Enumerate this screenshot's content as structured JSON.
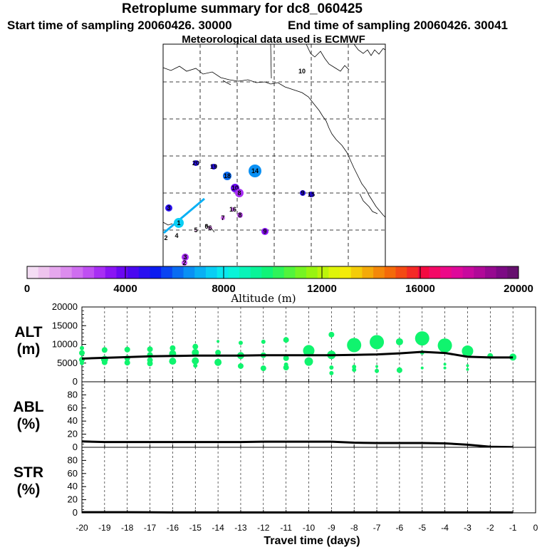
{
  "header": {
    "title": "Retroplume summary for dc8_060425",
    "start_label": "Start time of sampling 20060426. 30000",
    "end_label": "End time of sampling 20060426. 30041",
    "met_label": "Meteorological data used is ECMWF"
  },
  "map": {
    "day_labels": [
      "10",
      "20",
      "19",
      "18",
      "14",
      "10",
      "9",
      "15",
      "16",
      "8",
      "8",
      "9",
      "3",
      "7",
      "6",
      "5",
      "1",
      "2",
      "4",
      "3",
      "2",
      "6"
    ]
  },
  "colorbar": {
    "ticks": [
      "0",
      "4000",
      "8000",
      "12000",
      "16000",
      "20000"
    ],
    "label": "Altitude (m)",
    "colors": [
      "#f4ddf4",
      "#eec4ee",
      "#e6a8ee",
      "#dc8cee",
      "#cf6ef0",
      "#bf4ff2",
      "#a82ef4",
      "#8a14f4",
      "#6a08f2",
      "#4a08f0",
      "#2a10f0",
      "#0b1cf0",
      "#0a44f2",
      "#0a6cf2",
      "#0a90f4",
      "#0ab0f4",
      "#0acef4",
      "#0ae8ef",
      "#0af4d8",
      "#0af4b8",
      "#0af498",
      "#10f478",
      "#2ef45a",
      "#52f43c",
      "#76f422",
      "#98f410",
      "#bcf40a",
      "#def40a",
      "#f4ec0a",
      "#f4cc0a",
      "#f4aa0a",
      "#f4880a",
      "#f46a0a",
      "#f44a14",
      "#f42a26",
      "#f40a40",
      "#f40a66",
      "#ec0a88",
      "#de0a9a",
      "#c80a9e",
      "#b00a98",
      "#960a90",
      "#7c0a84",
      "#66106e"
    ]
  },
  "chart_data": [
    {
      "type": "scatter",
      "panel": "ALT",
      "ylabel": "ALT\n(m)",
      "ylabel_top": "ALT",
      "ylabel_bottom": "(m)",
      "ylim": [
        0,
        20000
      ],
      "xlim": [
        -20,
        0
      ],
      "yticks": [
        "0",
        "5000",
        "10000",
        "15000",
        "20000"
      ],
      "line": {
        "x": [
          -20,
          -19,
          -18,
          -17,
          -16,
          -15,
          -14,
          -13,
          -12,
          -11,
          -10,
          -9,
          -8,
          -7,
          -6,
          -5,
          -4,
          -3,
          -2,
          -1
        ],
        "y": [
          6200,
          6400,
          6600,
          6800,
          6900,
          7000,
          7000,
          7000,
          7100,
          7100,
          7100,
          7100,
          7200,
          7300,
          7600,
          8000,
          7700,
          6700,
          6500,
          6500
        ]
      },
      "bubbles": [
        {
          "x": -20,
          "y": 9000,
          "s": 3
        },
        {
          "x": -20,
          "y": 7700,
          "s": 4
        },
        {
          "x": -20,
          "y": 5900,
          "s": 4
        },
        {
          "x": -20,
          "y": 5000,
          "s": 3
        },
        {
          "x": -19,
          "y": 8500,
          "s": 4
        },
        {
          "x": -19,
          "y": 6000,
          "s": 5
        },
        {
          "x": -19,
          "y": 5200,
          "s": 4
        },
        {
          "x": -18,
          "y": 8600,
          "s": 4
        },
        {
          "x": -18,
          "y": 6300,
          "s": 4
        },
        {
          "x": -18,
          "y": 5100,
          "s": 4
        },
        {
          "x": -17,
          "y": 8700,
          "s": 4
        },
        {
          "x": -17,
          "y": 7200,
          "s": 4
        },
        {
          "x": -17,
          "y": 5800,
          "s": 4
        },
        {
          "x": -17,
          "y": 4900,
          "s": 4
        },
        {
          "x": -16,
          "y": 9000,
          "s": 4
        },
        {
          "x": -16,
          "y": 7500,
          "s": 5
        },
        {
          "x": -16,
          "y": 5500,
          "s": 5
        },
        {
          "x": -15,
          "y": 9400,
          "s": 4
        },
        {
          "x": -15,
          "y": 7800,
          "s": 5
        },
        {
          "x": -15,
          "y": 5600,
          "s": 5
        },
        {
          "x": -15,
          "y": 4300,
          "s": 3
        },
        {
          "x": -14,
          "y": 10800,
          "s": 2
        },
        {
          "x": -14,
          "y": 7800,
          "s": 4
        },
        {
          "x": -14,
          "y": 5200,
          "s": 5
        },
        {
          "x": -13,
          "y": 10400,
          "s": 3
        },
        {
          "x": -13,
          "y": 7000,
          "s": 5
        },
        {
          "x": -13,
          "y": 4200,
          "s": 4
        },
        {
          "x": -12,
          "y": 10700,
          "s": 3
        },
        {
          "x": -12,
          "y": 7100,
          "s": 4
        },
        {
          "x": -12,
          "y": 3600,
          "s": 4
        },
        {
          "x": -11,
          "y": 11200,
          "s": 4
        },
        {
          "x": -11,
          "y": 6300,
          "s": 4
        },
        {
          "x": -11,
          "y": 4600,
          "s": 3
        },
        {
          "x": -11,
          "y": 3800,
          "s": 4
        },
        {
          "x": -10,
          "y": 8300,
          "s": 8
        },
        {
          "x": -10,
          "y": 5400,
          "s": 6
        },
        {
          "x": -9,
          "y": 12600,
          "s": 4
        },
        {
          "x": -9,
          "y": 7200,
          "s": 6
        },
        {
          "x": -9,
          "y": 3800,
          "s": 3
        },
        {
          "x": -9,
          "y": 2300,
          "s": 3
        },
        {
          "x": -8,
          "y": 9800,
          "s": 10
        },
        {
          "x": -8,
          "y": 4000,
          "s": 3
        },
        {
          "x": -8,
          "y": 3200,
          "s": 3
        },
        {
          "x": -7,
          "y": 10600,
          "s": 10
        },
        {
          "x": -7,
          "y": 4100,
          "s": 2
        },
        {
          "x": -7,
          "y": 2900,
          "s": 3
        },
        {
          "x": -6,
          "y": 10700,
          "s": 5
        },
        {
          "x": -6,
          "y": 3100,
          "s": 4
        },
        {
          "x": -5,
          "y": 11600,
          "s": 10
        },
        {
          "x": -5,
          "y": 7800,
          "s": 3
        },
        {
          "x": -5,
          "y": 3700,
          "s": 2
        },
        {
          "x": -4,
          "y": 9700,
          "s": 10
        },
        {
          "x": -4,
          "y": 4700,
          "s": 2
        },
        {
          "x": -4,
          "y": 3700,
          "s": 2
        },
        {
          "x": -3,
          "y": 8200,
          "s": 8
        },
        {
          "x": -3,
          "y": 4300,
          "s": 2
        },
        {
          "x": -3,
          "y": 3300,
          "s": 2
        },
        {
          "x": -2,
          "y": 6900,
          "s": 4
        },
        {
          "x": -1,
          "y": 6600,
          "s": 5
        }
      ]
    },
    {
      "type": "line",
      "panel": "ABL",
      "ylabel_top": "ABL",
      "ylabel_bottom": "(%)",
      "ylim": [
        0,
        100
      ],
      "xlim": [
        -20,
        0
      ],
      "yticks": [
        "0",
        "20",
        "40",
        "60",
        "80"
      ],
      "x": [
        -20,
        -19,
        -18,
        -17,
        -16,
        -15,
        -14,
        -13,
        -12,
        -11,
        -10,
        -9,
        -8,
        -7,
        -6,
        -5,
        -4,
        -3,
        -2,
        -1
      ],
      "y": [
        9,
        8,
        8,
        8,
        8,
        8,
        8,
        8,
        8.5,
        8.5,
        8.5,
        8.5,
        7,
        6.5,
        6.5,
        6.5,
        6,
        4,
        0.8,
        0.3
      ]
    },
    {
      "type": "line",
      "panel": "STR",
      "ylabel_top": "STR",
      "ylabel_bottom": "(%)",
      "ylim": [
        0,
        100
      ],
      "xlim": [
        -20,
        0
      ],
      "yticks": [
        "0",
        "20",
        "40",
        "60",
        "80"
      ],
      "xticks": [
        "-20",
        "-19",
        "-18",
        "-17",
        "-16",
        "-15",
        "-14",
        "-13",
        "-12",
        "-11",
        "-10",
        "-9",
        "-8",
        "-7",
        "-6",
        "-5",
        "-4",
        "-3",
        "-2",
        "-1",
        "0"
      ],
      "xlabel": "Travel time (days)",
      "x": [
        -20,
        -19,
        -18,
        -17,
        -16,
        -15,
        -14,
        -13,
        -12,
        -11,
        -10,
        -9,
        -8,
        -7,
        -6,
        -5,
        -4,
        -3,
        -2,
        -1
      ],
      "y": [
        1,
        1,
        1,
        0.8,
        0.6,
        0.5,
        0.5,
        0.5,
        0.5,
        0.5,
        0.5,
        0.5,
        0.5,
        0.5,
        0.5,
        0.5,
        0.5,
        0.5,
        0.5,
        0.5
      ]
    }
  ]
}
